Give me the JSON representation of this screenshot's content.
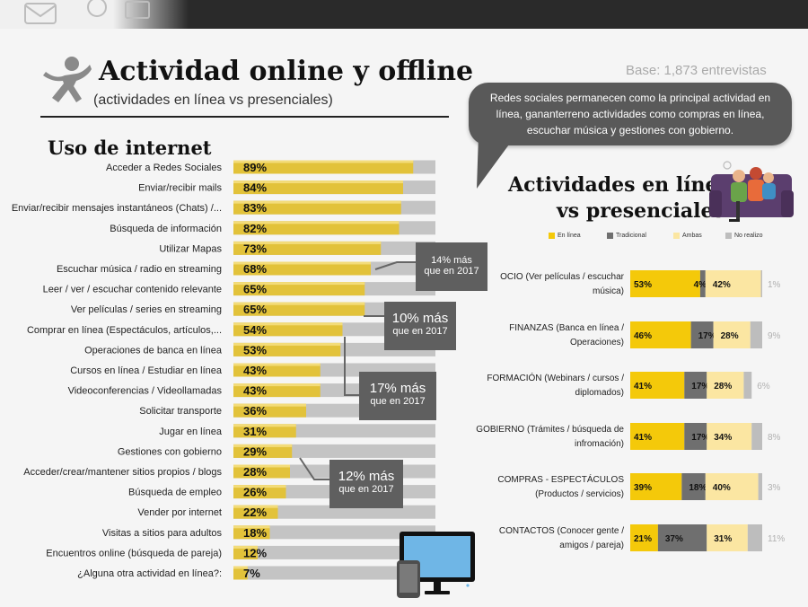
{
  "header": {
    "title": "Actividad online y offline",
    "subtitle": "(actividades en línea vs presenciales)",
    "base": "Base: 1,873 entrevistas"
  },
  "bubble": {
    "text": "Redes sociales permanecen como la principal actividad en línea, gananterreno actividades como compras en línea, escuchar música y gestiones con gobierno."
  },
  "section_left": {
    "title": "Uso de internet"
  },
  "section_right": {
    "title_line1": "Actividades en línea",
    "title_line2": "vs presenciales"
  },
  "callouts": [
    {
      "line1": "14% más",
      "line2": "que en 2017"
    },
    {
      "line1": "10% más",
      "line2": "que en 2017"
    },
    {
      "line1": "17% más",
      "line2": "que en 2017"
    },
    {
      "line1": "12% más",
      "line2": "que en 2017"
    }
  ],
  "colors": {
    "bar_gold": "#e2c23a",
    "bar_track": "#c4c4c4",
    "en_linea": "#f4c90a",
    "tradicional": "#6f6f6f",
    "ambas": "#fbe6a2",
    "no_realizo": "#bdbdbd",
    "bubble": "#595959"
  },
  "icons": [
    "person-jumping-icon",
    "family-on-sofa-icon",
    "monitor-icon",
    "tablet-icon"
  ],
  "chart_data": [
    {
      "type": "bar",
      "orientation": "horizontal",
      "title": "Uso de internet",
      "unit": "%",
      "xlim": [
        0,
        100
      ],
      "categories": [
        "Acceder a Redes Sociales",
        "Enviar/recibir mails",
        "Enviar/recibir mensajes instantáneos (Chats) /...",
        "Búsqueda de información",
        "Utilizar Mapas",
        "Escuchar música / radio en streaming",
        "Leer / ver / escuchar contenido relevante",
        "Ver películas / series en streaming",
        "Comprar en línea (Espectáculos, artículos,...",
        "Operaciones de banca en línea",
        "Cursos en línea / Estudiar en línea",
        "Videoconferencias / Videollamadas",
        "Solicitar transporte",
        "Jugar en línea",
        "Gestiones con gobierno",
        "Acceder/crear/mantener sitios propios / blogs",
        "Búsqueda de empleo",
        "Vender por internet",
        "Visitas a sitios para adultos",
        "Encuentros online (búsqueda de pareja)",
        "¿Alguna otra actividad en línea?:"
      ],
      "values": [
        89,
        84,
        83,
        82,
        73,
        68,
        65,
        65,
        54,
        53,
        43,
        43,
        36,
        31,
        29,
        28,
        26,
        22,
        18,
        12,
        7
      ],
      "labels": [
        "89%",
        "84%",
        "83%",
        "82%",
        "73%",
        "68%",
        "65%",
        "65%",
        "54%",
        "53%",
        "43%",
        "43%",
        "36%",
        "31%",
        "29%",
        "28%",
        "26%",
        "22%",
        "18%",
        "12%",
        "7%"
      ]
    },
    {
      "type": "bar",
      "orientation": "horizontal",
      "stacked": true,
      "title": "Actividades en línea vs presenciales",
      "unit": "%",
      "legend": [
        "En línea",
        "Tradicional",
        "Ambas",
        "No realizo"
      ],
      "legend_position": "top",
      "categories": [
        {
          "line1": "OCIO (Ver películas / escuchar",
          "line2": "música)"
        },
        {
          "line1": "FINANZAS (Banca en línea /",
          "line2": "Operaciones)"
        },
        {
          "line1": "FORMACIÓN (Webinars / cursos /",
          "line2": "diplomados)"
        },
        {
          "line1": "GOBIERNO (Trámites / búsqueda de",
          "line2": "infromación)"
        },
        {
          "line1": "COMPRAS - ESPECTÁCULOS",
          "line2": "(Productos / servicios)"
        },
        {
          "line1": "CONTACTOS (Conocer gente /",
          "line2": "amigos / pareja)"
        }
      ],
      "series": [
        {
          "name": "En línea",
          "values": [
            53,
            46,
            41,
            41,
            39,
            21
          ],
          "labels": [
            "53%",
            "46%",
            "41%",
            "41%",
            "39%",
            "21%"
          ]
        },
        {
          "name": "Tradicional",
          "values": [
            4,
            17,
            17,
            17,
            18,
            37
          ],
          "labels": [
            "4%",
            "17%",
            "17%",
            "17%",
            "18%",
            "37%"
          ]
        },
        {
          "name": "Ambas",
          "values": [
            42,
            28,
            28,
            34,
            40,
            31
          ],
          "labels": [
            "42%",
            "28%",
            "28%",
            "34%",
            "40%",
            "31%"
          ]
        },
        {
          "name": "No realizo",
          "values": [
            1,
            9,
            6,
            8,
            3,
            11
          ],
          "labels": [
            "1%",
            "9%",
            "6%",
            "8%",
            "3%",
            "11%"
          ]
        }
      ]
    }
  ]
}
